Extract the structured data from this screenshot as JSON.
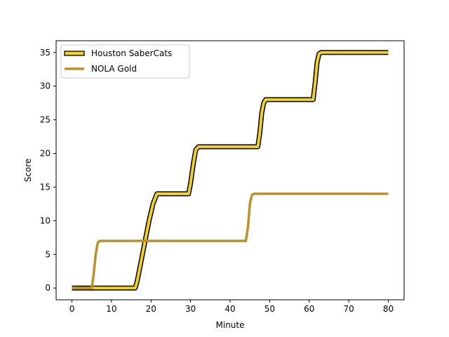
{
  "chart_data": {
    "type": "line",
    "title": "",
    "xlabel": "Minute",
    "ylabel": "Score",
    "xlim": [
      -4,
      84
    ],
    "ylim": [
      -1.75,
      36.75
    ],
    "xticks": [
      0,
      10,
      20,
      30,
      40,
      50,
      60,
      70,
      80
    ],
    "yticks": [
      0,
      5,
      10,
      15,
      20,
      25,
      30,
      35
    ],
    "grid": false,
    "legend_position": "top-left",
    "series": [
      {
        "name": "Houston SaberCats",
        "color": "#f2d024",
        "outline_color": "#000000",
        "x": [
          0,
          16,
          16.5,
          17.5,
          18.5,
          19.5,
          20.5,
          21.5,
          22,
          29.5,
          30,
          30.7,
          31.3,
          32,
          47,
          47.5,
          48,
          48.5,
          49,
          61,
          61.5,
          62,
          62.5,
          63,
          80
        ],
        "y": [
          0,
          0,
          1.0,
          4.0,
          7.0,
          10.0,
          12.5,
          14.0,
          14,
          14,
          15.5,
          18.5,
          20.5,
          21,
          21,
          23,
          26,
          27.5,
          28,
          28,
          30.5,
          33.5,
          34.8,
          35,
          35
        ]
      },
      {
        "name": "NOLA Gold",
        "color": "#bf8f29",
        "x": [
          0,
          5,
          5.5,
          6,
          6.5,
          7,
          44,
          44.5,
          45,
          45.5,
          46,
          80
        ],
        "y": [
          0,
          0,
          2.0,
          5.0,
          6.7,
          7,
          7,
          9.0,
          12.5,
          13.8,
          14,
          14
        ]
      }
    ]
  }
}
